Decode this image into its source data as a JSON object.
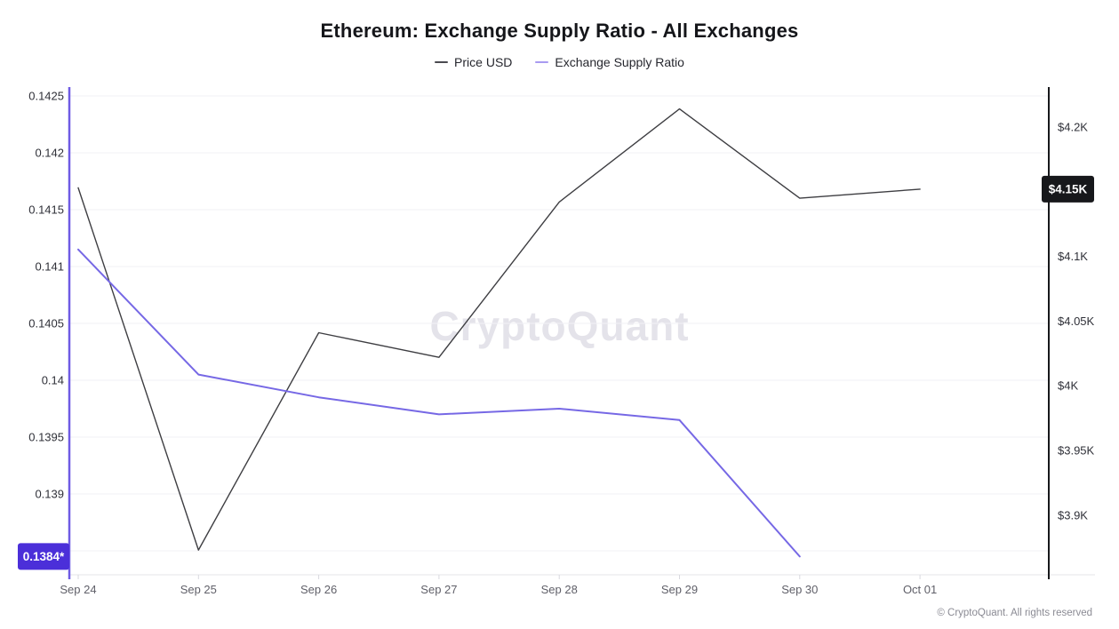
{
  "header": {
    "title": "Ethereum: Exchange Supply Ratio - All Exchanges"
  },
  "legend": {
    "price": {
      "label": "Price USD",
      "dash_color": "#4a4a50"
    },
    "ratio": {
      "label": "Exchange Supply Ratio",
      "dash_color": "#a89bf1"
    }
  },
  "watermark": "CryptoQuant",
  "footer": {
    "copyright": "© CryptoQuant. All rights reserved"
  },
  "colors": {
    "price_line": "#3e3e42",
    "ratio_line": "#7668e5",
    "left_axis_line": "#6f5be4",
    "right_axis_line": "#17181b",
    "gridline": "#f2f1f5",
    "x_axis_line": "#e4e4e9",
    "x_tick": "#d9d9df",
    "axis_label": "#2f3038",
    "x_label": "#606069",
    "ratio_badge_bg": "#4b2fd9",
    "price_badge_bg": "#17181b",
    "badge_text": "#ffffff"
  },
  "chart_data": {
    "type": "line",
    "title": "Ethereum: Exchange Supply Ratio - All Exchanges",
    "categories": [
      "Sep 24",
      "Sep 25",
      "Sep 26",
      "Sep 27",
      "Sep 28",
      "Sep 29",
      "Sep 30",
      "Oct 01"
    ],
    "series": [
      {
        "name": "Price USD",
        "axis": "right",
        "values": [
          4153,
          3873,
          4041,
          4022,
          4142,
          4214,
          4145,
          4152
        ]
      },
      {
        "name": "Exchange Supply Ratio",
        "axis": "left",
        "values": [
          0.14115,
          0.14005,
          0.13985,
          0.1397,
          0.13975,
          0.13965,
          0.13845,
          null
        ]
      }
    ],
    "left_axis": {
      "title": "Exchange Supply Ratio",
      "range": [
        0.1385,
        0.1425
      ],
      "ticks": [
        {
          "label": "0.1425",
          "value": 0.1425
        },
        {
          "label": "0.142",
          "value": 0.142
        },
        {
          "label": "0.1415",
          "value": 0.1415
        },
        {
          "label": "0.141",
          "value": 0.141
        },
        {
          "label": "0.1405",
          "value": 0.1405
        },
        {
          "label": "0.14",
          "value": 0.14
        },
        {
          "label": "0.1395",
          "value": 0.1395
        },
        {
          "label": "0.139",
          "value": 0.139
        }
      ],
      "grid_values": [
        0.1425,
        0.142,
        0.1415,
        0.141,
        0.1405,
        0.14,
        0.1395,
        0.139,
        0.1385
      ],
      "badge": {
        "label": "0.1384*",
        "value": 0.13845
      }
    },
    "right_axis": {
      "title": "Price USD",
      "range": [
        3870,
        4220
      ],
      "ticks": [
        {
          "label": "$4.2K",
          "value": 4200
        },
        {
          "label": "$4.15K",
          "value": 4150
        },
        {
          "label": "$4.1K",
          "value": 4100
        },
        {
          "label": "$4.05K",
          "value": 4050
        },
        {
          "label": "$4K",
          "value": 4000
        },
        {
          "label": "$3.95K",
          "value": 3950
        },
        {
          "label": "$3.9K",
          "value": 3900
        }
      ],
      "badge": {
        "label": "$4.15K",
        "value": 4152
      }
    },
    "legend_position": "top",
    "grid": "horizontal"
  }
}
